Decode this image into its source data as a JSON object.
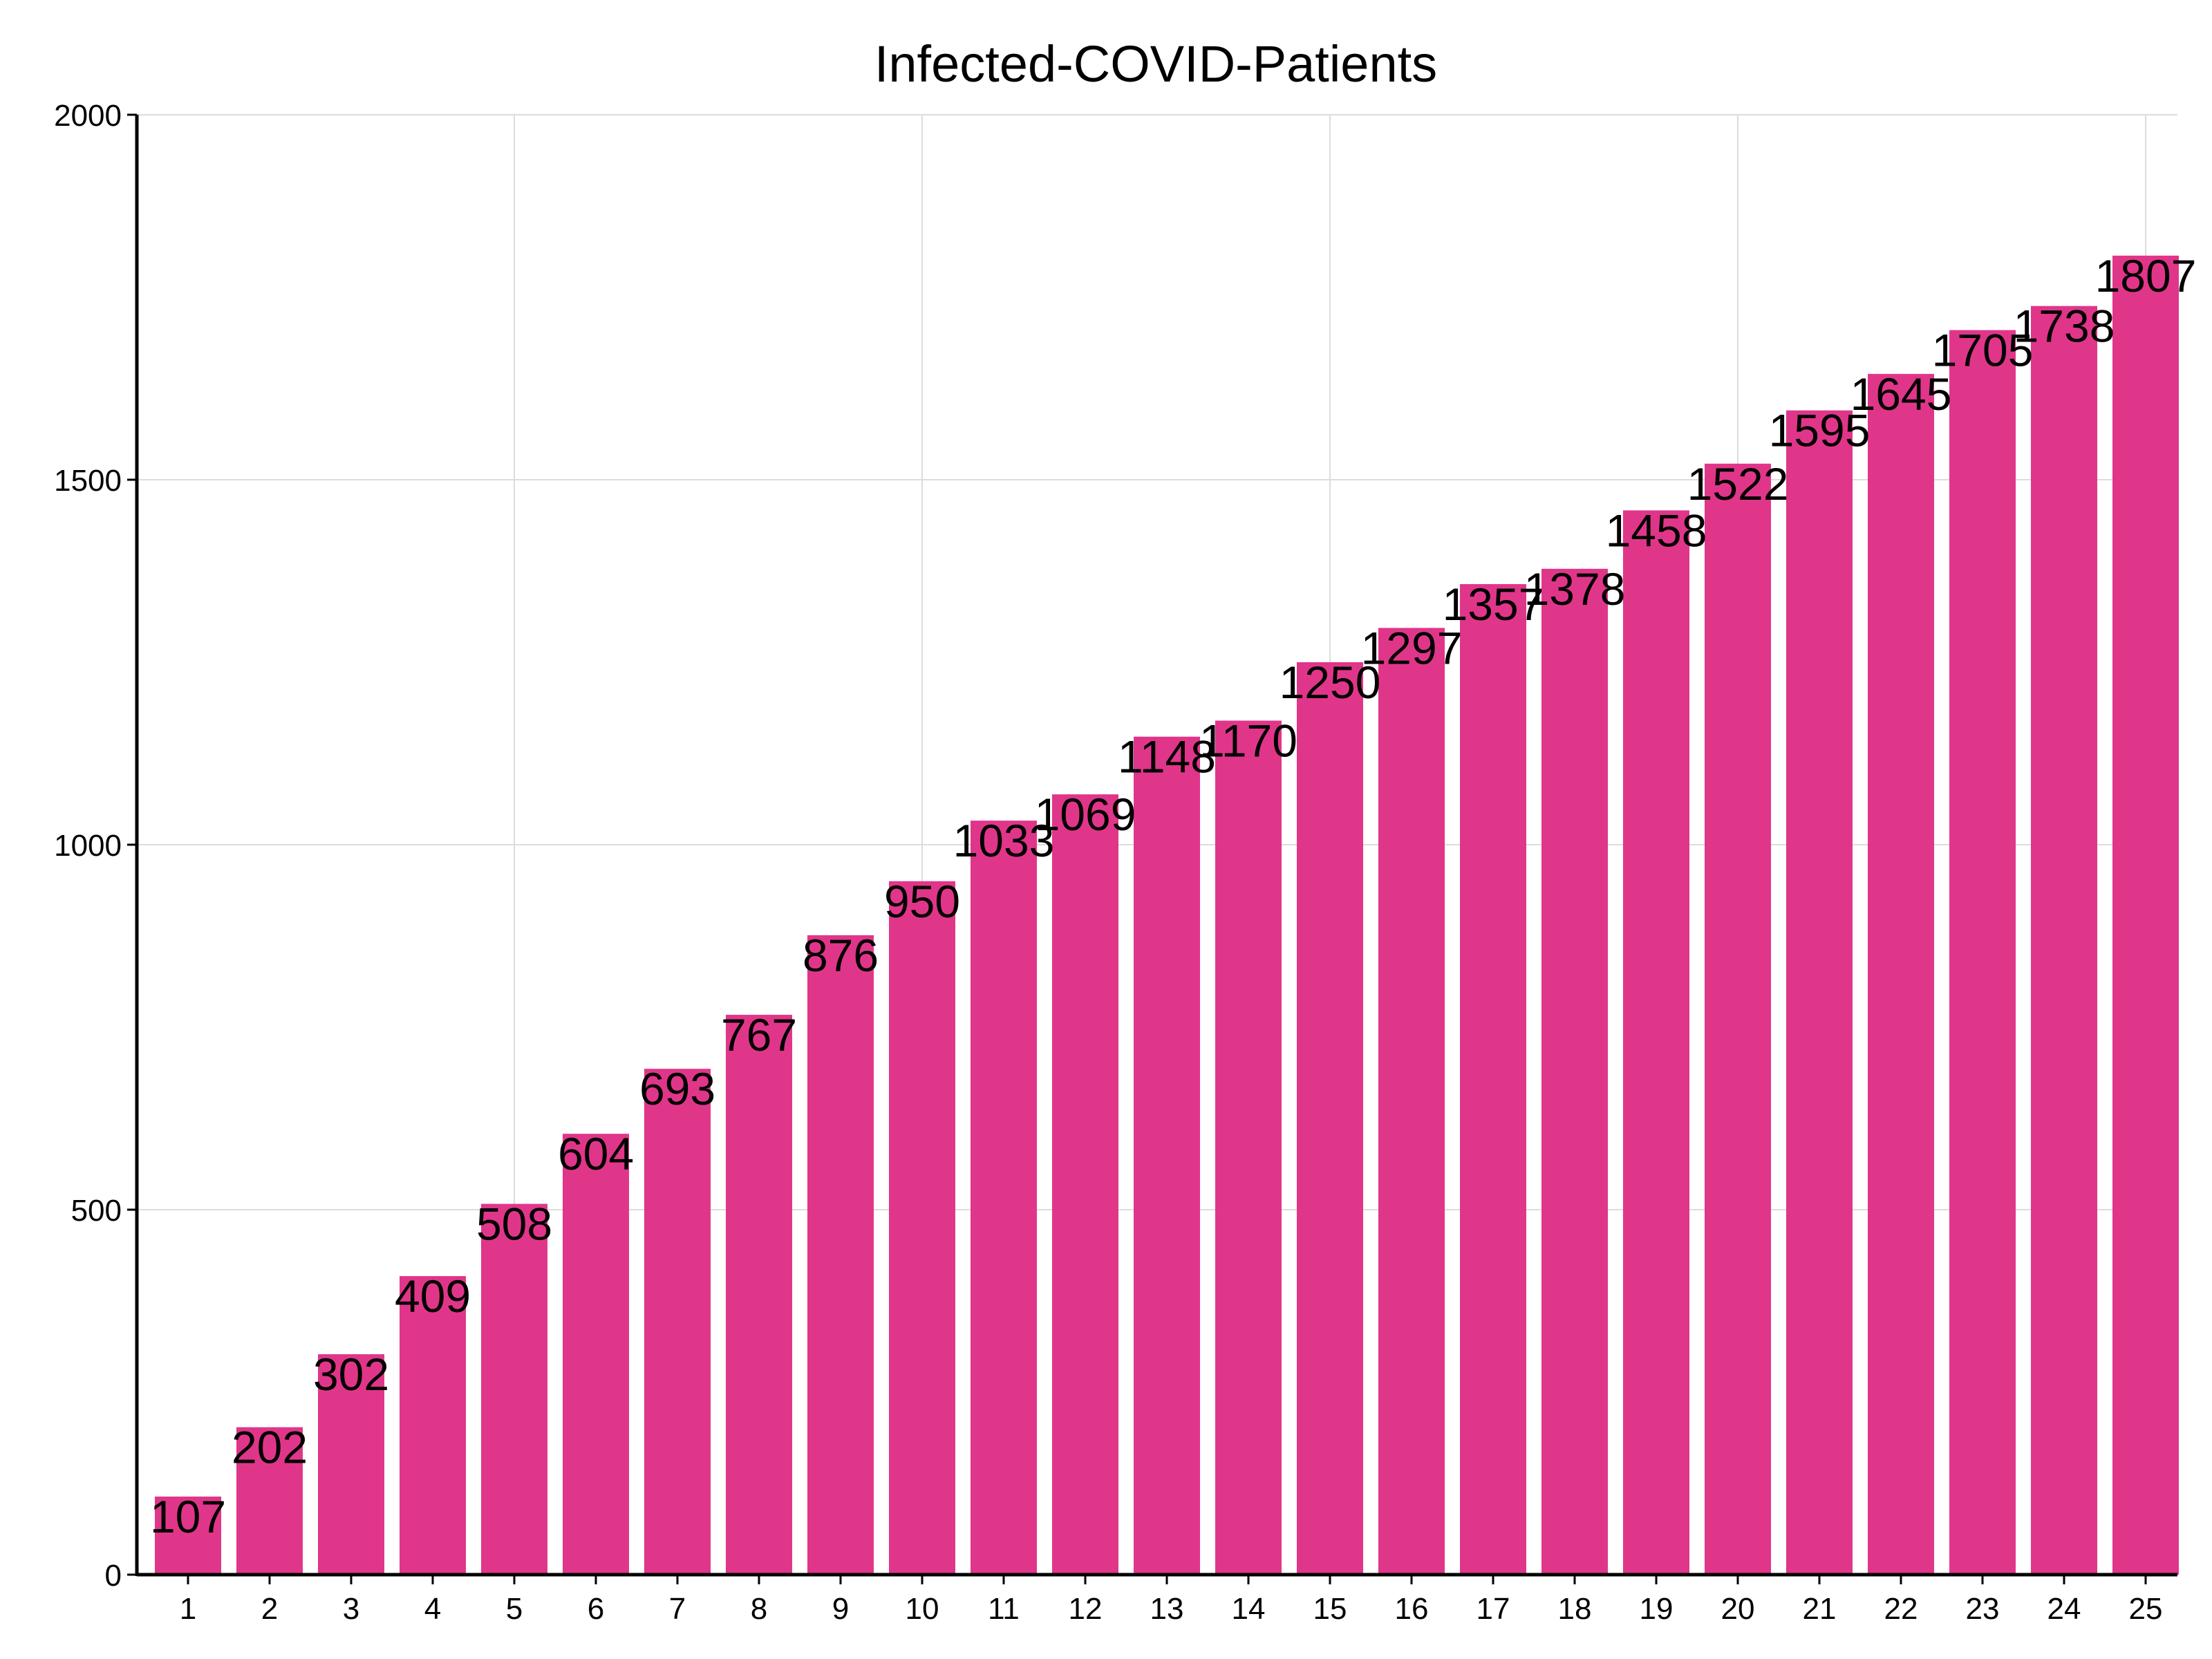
{
  "chart_data": {
    "type": "bar",
    "title": "Infected-COVID-Patients",
    "xlabel": "",
    "ylabel": "",
    "categories": [
      "1",
      "2",
      "3",
      "4",
      "5",
      "6",
      "7",
      "8",
      "9",
      "10",
      "11",
      "12",
      "13",
      "14",
      "15",
      "16",
      "17",
      "18",
      "19",
      "20",
      "21",
      "22",
      "23",
      "24",
      "25"
    ],
    "values": [
      107,
      202,
      302,
      409,
      508,
      604,
      693,
      767,
      876,
      950,
      1033,
      1069,
      1148,
      1170,
      1250,
      1297,
      1357,
      1378,
      1458,
      1522,
      1595,
      1645,
      1705,
      1738,
      1807
    ],
    "ylim": [
      0,
      2000
    ],
    "yticks": [
      "0",
      "500",
      "1000",
      "1500",
      "2000"
    ],
    "grid": true,
    "legend": "none",
    "colors": {
      "bar": "#e0368a",
      "grid": "#dcdcdc",
      "axis": "#000000"
    }
  }
}
